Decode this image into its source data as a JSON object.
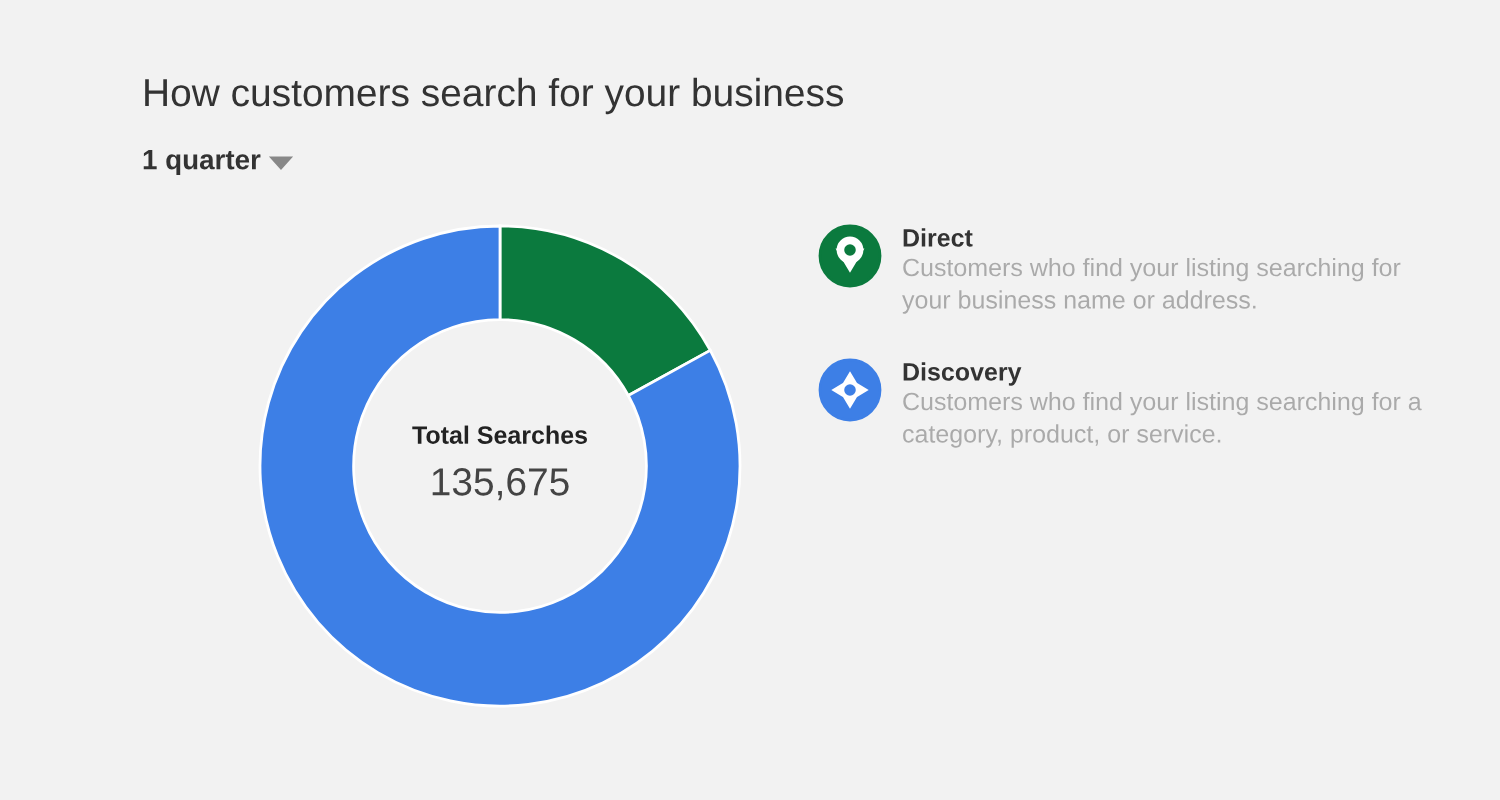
{
  "chart_data": {
    "type": "donut",
    "title": "How customers search for your business",
    "subtitle": "1 quarter",
    "categories": [
      "Direct",
      "Discovery"
    ],
    "values": [
      17,
      83
    ],
    "colors": [
      "#0b7a3e",
      "#3d7fe6"
    ],
    "legend": "right",
    "annotations": [
      "Total Searches",
      "135,675",
      "Customers who find your listing searching for\nyour business name or address.",
      "Customers who find your listing searching for a\ncategory, product, or service."
    ]
  }
}
